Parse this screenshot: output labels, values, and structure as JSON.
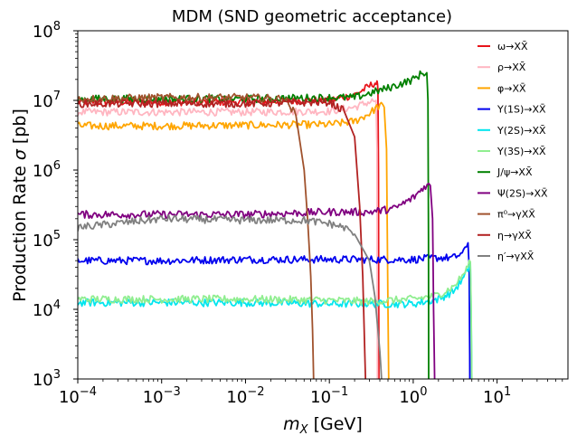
{
  "chart_data": {
    "type": "line",
    "title": "MDM (SND geometric acceptance)",
    "xlabel": "m_X [GeV]",
    "ylabel": "Production Rate σ [pb]",
    "xscale": "log",
    "yscale": "log",
    "xlim": [
      0.0001,
      70
    ],
    "ylim": [
      1000,
      100000000
    ],
    "x_ticks": [
      {
        "value": 0.0001,
        "base": "10",
        "exp": "−4"
      },
      {
        "value": 0.001,
        "base": "10",
        "exp": "−3"
      },
      {
        "value": 0.01,
        "base": "10",
        "exp": "−2"
      },
      {
        "value": 0.1,
        "base": "10",
        "exp": "−1"
      },
      {
        "value": 1,
        "base": "10",
        "exp": "0"
      },
      {
        "value": 10,
        "base": "10",
        "exp": "1"
      }
    ],
    "y_ticks": [
      {
        "value": 1000,
        "base": "10",
        "exp": "3"
      },
      {
        "value": 10000,
        "base": "10",
        "exp": "4"
      },
      {
        "value": 100000,
        "base": "10",
        "exp": "5"
      },
      {
        "value": 1000000,
        "base": "10",
        "exp": "6"
      },
      {
        "value": 10000000,
        "base": "10",
        "exp": "7"
      },
      {
        "value": 100000000,
        "base": "10",
        "exp": "8"
      }
    ],
    "legend_position": "top-right",
    "series": [
      {
        "name": "ω→XX̄",
        "color": "#e8141b",
        "x": [
          0.0001,
          0.001,
          0.01,
          0.05,
          0.1,
          0.2,
          0.3,
          0.35,
          0.37,
          0.38,
          0.385,
          0.39
        ],
        "y": [
          9500000,
          9500000,
          9500000,
          10000000,
          10000000,
          12000000,
          16000000,
          18000000,
          17000000,
          14000000,
          1000000,
          1000
        ]
      },
      {
        "name": "ρ→XX̄",
        "color": "#ffb6c1",
        "x": [
          0.0001,
          0.001,
          0.01,
          0.1,
          0.2,
          0.3,
          0.36,
          0.37,
          0.375
        ],
        "y": [
          6800000,
          6800000,
          6800000,
          7000000,
          8000000,
          9500000,
          10000000,
          2000000,
          1000
        ]
      },
      {
        "name": "φ→XX̄",
        "color": "#ffa500",
        "x": [
          0.0001,
          0.001,
          0.01,
          0.1,
          0.2,
          0.3,
          0.4,
          0.45,
          0.48,
          0.5,
          0.51
        ],
        "y": [
          4300000,
          4300000,
          4400000,
          4500000,
          5000000,
          6500000,
          8500000,
          8000000,
          2000000,
          10000,
          1000
        ]
      },
      {
        "name": "Υ(1S)→XX̄",
        "color": "#0000ee",
        "x": [
          0.0001,
          0.001,
          0.01,
          0.1,
          1,
          2,
          3,
          4,
          4.5,
          4.65,
          4.7,
          4.73
        ],
        "y": [
          50000,
          50000,
          52000,
          52000,
          52000,
          55000,
          55000,
          65000,
          90000,
          40000,
          5000,
          1000
        ]
      },
      {
        "name": "Υ(2S)→XX̄",
        "color": "#00e5ee",
        "x": [
          0.0001,
          0.001,
          0.01,
          0.1,
          0.3,
          1,
          2,
          3,
          4,
          4.5,
          4.8,
          4.9,
          5
        ],
        "y": [
          12500,
          12500,
          12500,
          12000,
          12000,
          12000,
          14000,
          18000,
          28000,
          38000,
          45000,
          10000,
          1000
        ]
      },
      {
        "name": "Υ(3S)→XX̄",
        "color": "#90ee90",
        "x": [
          0.0001,
          0.001,
          0.01,
          0.1,
          0.3,
          1,
          2,
          3,
          4,
          4.5,
          4.8,
          4.9,
          5
        ],
        "y": [
          14000,
          14000,
          14000,
          13500,
          13000,
          14000,
          16000,
          21000,
          32000,
          42000,
          48000,
          12000,
          1000
        ]
      },
      {
        "name": "J/ψ→XX̄",
        "color": "#008000",
        "x": [
          0.0001,
          0.001,
          0.01,
          0.1,
          0.2,
          0.5,
          1,
          1.3,
          1.45,
          1.5,
          1.52,
          1.53
        ],
        "y": [
          10500000,
          10500000,
          10500000,
          11000000,
          11000000,
          15000000,
          20000000,
          25000000,
          25000000,
          10000000,
          100000,
          1000
        ]
      },
      {
        "name": "Ψ(2S)→XX̄",
        "color": "#800080",
        "x": [
          0.0001,
          0.001,
          0.01,
          0.1,
          0.3,
          0.6,
          1,
          1.4,
          1.6,
          1.7,
          1.75,
          1.8
        ],
        "y": [
          230000,
          230000,
          230000,
          250000,
          250000,
          280000,
          400000,
          600000,
          600000,
          200000,
          10000,
          1000
        ]
      },
      {
        "name": "π⁰→γXX̄",
        "color": "#a0522d",
        "x": [
          0.0001,
          0.001,
          0.01,
          0.03,
          0.04,
          0.05,
          0.055,
          0.06,
          0.063,
          0.065
        ],
        "y": [
          10500000,
          11000000,
          11000000,
          10500000,
          6000000,
          1000000,
          200000,
          30000,
          5000,
          1000
        ]
      },
      {
        "name": "η→γXX̄",
        "color": "#b22222",
        "x": [
          0.0001,
          0.001,
          0.01,
          0.1,
          0.15,
          0.2,
          0.23,
          0.25,
          0.26,
          0.27
        ],
        "y": [
          9000000,
          9000000,
          9000000,
          9500000,
          7000000,
          3000000,
          300000,
          30000,
          5000,
          1000
        ]
      },
      {
        "name": "η′→γXX̄",
        "color": "#808080",
        "x": [
          0.0001,
          0.001,
          0.01,
          0.05,
          0.1,
          0.15,
          0.2,
          0.3,
          0.35,
          0.4,
          0.42
        ],
        "y": [
          150000,
          200000,
          190000,
          190000,
          170000,
          150000,
          120000,
          50000,
          15000,
          2500,
          1000
        ]
      }
    ]
  }
}
